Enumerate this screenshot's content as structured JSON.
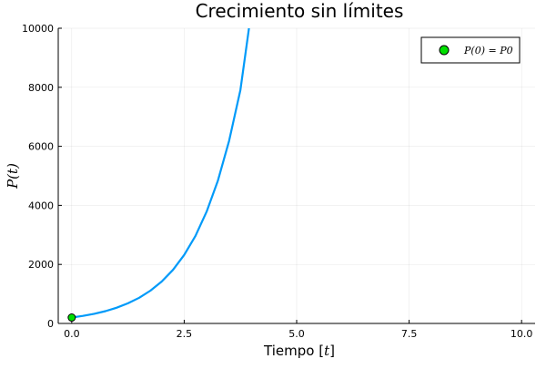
{
  "chart_data": {
    "type": "line",
    "title": "Crecimiento sin límites",
    "xlabel": "Tiempo [t]",
    "ylabel": "P(t)",
    "xlim": [
      -0.3,
      10.3
    ],
    "ylim": [
      0,
      10000
    ],
    "x_ticks": [
      0.0,
      2.5,
      5.0,
      7.5,
      10.0
    ],
    "x_tick_labels": [
      "0.0",
      "2.5",
      "5.0",
      "7.5",
      "10.0"
    ],
    "y_ticks": [
      0,
      2000,
      4000,
      6000,
      8000,
      10000
    ],
    "y_tick_labels": [
      "0",
      "2000",
      "4000",
      "6000",
      "8000",
      "10000"
    ],
    "grid": true,
    "legend_position": "top-right",
    "series": [
      {
        "kind": "line",
        "color": "#009af9",
        "x": [
          0.0,
          0.25,
          0.5,
          0.75,
          1.0,
          1.25,
          1.5,
          1.75,
          2.0,
          2.25,
          2.5,
          2.75,
          3.0,
          3.25,
          3.5,
          3.75,
          3.94
        ],
        "y": [
          200,
          255,
          326,
          417,
          533,
          681,
          870,
          1112,
          1421,
          1816,
          2321,
          2966,
          3790,
          4843,
          6190,
          7910,
          10000
        ]
      },
      {
        "kind": "scatter",
        "name": "P(0) = P0",
        "color": "#00e000",
        "x": [
          0.0
        ],
        "y": [
          200
        ]
      }
    ]
  }
}
